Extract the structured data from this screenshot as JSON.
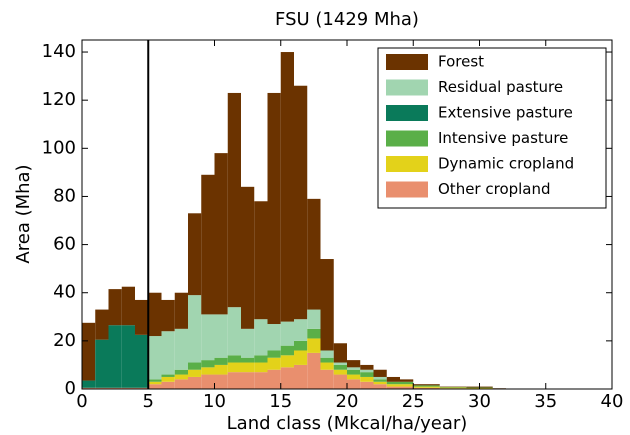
{
  "chart_data": {
    "type": "stacked_histogram",
    "title": "FSU (1429 Mha)",
    "xlabel": "Land class (Mkcal/ha/year)",
    "ylabel": "Area (Mha)",
    "bins": [
      0,
      1,
      2,
      3,
      4,
      5,
      6,
      7,
      8,
      9,
      10,
      11,
      12,
      13,
      14,
      15,
      16,
      17,
      18,
      19,
      20,
      21,
      22,
      23,
      24,
      25,
      26,
      27,
      28,
      29,
      30,
      31,
      32,
      33,
      34,
      35,
      36,
      37,
      38,
      39,
      40
    ],
    "series": [
      {
        "name": "Forest",
        "color": "#6b3300",
        "values": [
          24,
          12.5,
          15,
          16,
          14.5,
          18,
          13,
          15,
          34,
          58,
          67,
          89,
          59,
          49,
          96,
          112,
          97,
          46,
          38,
          8,
          3,
          2,
          3,
          2,
          1,
          0.5,
          0.5,
          0.2,
          0.2,
          0.4,
          0.4,
          0.2,
          0,
          0,
          0,
          0,
          0,
          0,
          0,
          0
        ]
      },
      {
        "name": "Residual pasture",
        "color": "#a1d5b0",
        "values": [
          0,
          0,
          0,
          0,
          0,
          18,
          18,
          17,
          28,
          19,
          18,
          20,
          12,
          15,
          11,
          10,
          9,
          8,
          3,
          1,
          1,
          1,
          1,
          0,
          0,
          0,
          0,
          0,
          0,
          0,
          0,
          0,
          0,
          0,
          0,
          0,
          0,
          0,
          0,
          0
        ]
      },
      {
        "name": "Extensive pasture",
        "color": "#0a7a5a",
        "values": [
          3,
          20,
          26,
          26,
          22,
          0,
          0,
          0,
          0,
          0,
          0,
          0,
          0,
          0,
          0,
          0,
          0,
          0,
          0,
          0,
          0,
          0,
          0,
          0,
          0,
          0,
          0,
          0,
          0,
          0,
          0,
          0,
          0,
          0,
          0,
          0,
          0,
          0,
          0,
          0
        ]
      },
      {
        "name": "Intensive pasture",
        "color": "#5aaf48",
        "values": [
          0,
          0,
          0,
          0,
          0,
          1,
          1,
          2,
          3,
          3,
          3,
          3,
          2,
          3,
          3,
          4,
          4,
          4,
          2,
          2,
          2,
          2,
          1,
          1,
          1,
          0.5,
          0.5,
          0.2,
          0.2,
          0.2,
          0.2,
          0,
          0,
          0,
          0,
          0,
          0,
          0,
          0,
          0
        ]
      },
      {
        "name": "Dynamic cropland",
        "color": "#e3d21a",
        "values": [
          0,
          0,
          0,
          0,
          0,
          1,
          2,
          2,
          3,
          3,
          4,
          4,
          4,
          4,
          5,
          5,
          6,
          6,
          3,
          2,
          2,
          2,
          1,
          1,
          1,
          0.5,
          0.5,
          0.3,
          0.3,
          0.2,
          0.2,
          0,
          0,
          0,
          0,
          0,
          0,
          0,
          0,
          0
        ]
      },
      {
        "name": "Other cropland",
        "color": "#e98f6e",
        "values": [
          0.5,
          0.5,
          0.5,
          0.5,
          0.5,
          2,
          3,
          4,
          5,
          6,
          6,
          7,
          7,
          7,
          8,
          9,
          10,
          15,
          8,
          6,
          4,
          3,
          2,
          1,
          1,
          0.5,
          0.5,
          0.3,
          0.3,
          0.2,
          0.2,
          0.1,
          0,
          0,
          0,
          0,
          0,
          0,
          0,
          0
        ]
      }
    ],
    "vline": 5,
    "xlim": [
      0,
      40
    ],
    "xticks": [
      0,
      5,
      10,
      15,
      20,
      25,
      30,
      35,
      40
    ],
    "ylim": [
      0,
      145
    ],
    "yticks": [
      0,
      20,
      40,
      60,
      80,
      100,
      120,
      140
    ],
    "legend": "upper right"
  }
}
